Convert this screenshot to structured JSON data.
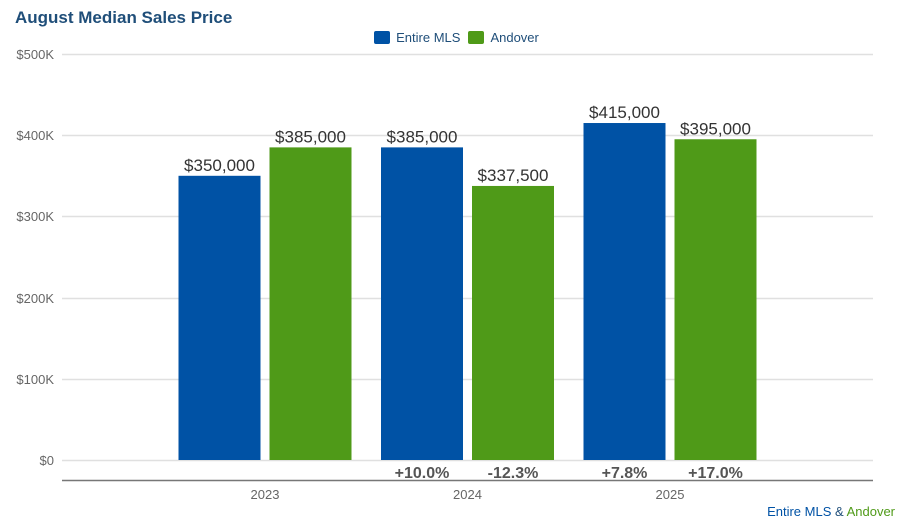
{
  "chart_data": {
    "type": "bar",
    "title": "August Median Sales Price",
    "xlabel": "",
    "ylabel": "",
    "categories": [
      "2023",
      "2024",
      "2025"
    ],
    "series": [
      {
        "name": "Entire MLS",
        "color": "#0052a5",
        "values": [
          350000,
          385000,
          415000
        ],
        "labels": [
          "$350,000",
          "$385,000",
          "$415,000"
        ],
        "changes": [
          null,
          "+10.0%",
          "+7.8%"
        ]
      },
      {
        "name": "Andover",
        "color": "#4f9a18",
        "values": [
          385000,
          337500,
          395000
        ],
        "labels": [
          "$385,000",
          "$337,500",
          "$395,000"
        ],
        "changes": [
          null,
          "-12.3%",
          "+17.0%"
        ]
      }
    ],
    "ylim": [
      0,
      500000
    ],
    "yticks": [
      0,
      100000,
      200000,
      300000,
      400000,
      500000
    ],
    "ytick_labels": [
      "$0",
      "$100K",
      "$200K",
      "$300K",
      "$400K",
      "$500K"
    ],
    "grid": true,
    "legend_position": "top-center"
  },
  "footer": {
    "series_a": "Entire MLS",
    "separator": " & ",
    "series_b": "Andover"
  }
}
